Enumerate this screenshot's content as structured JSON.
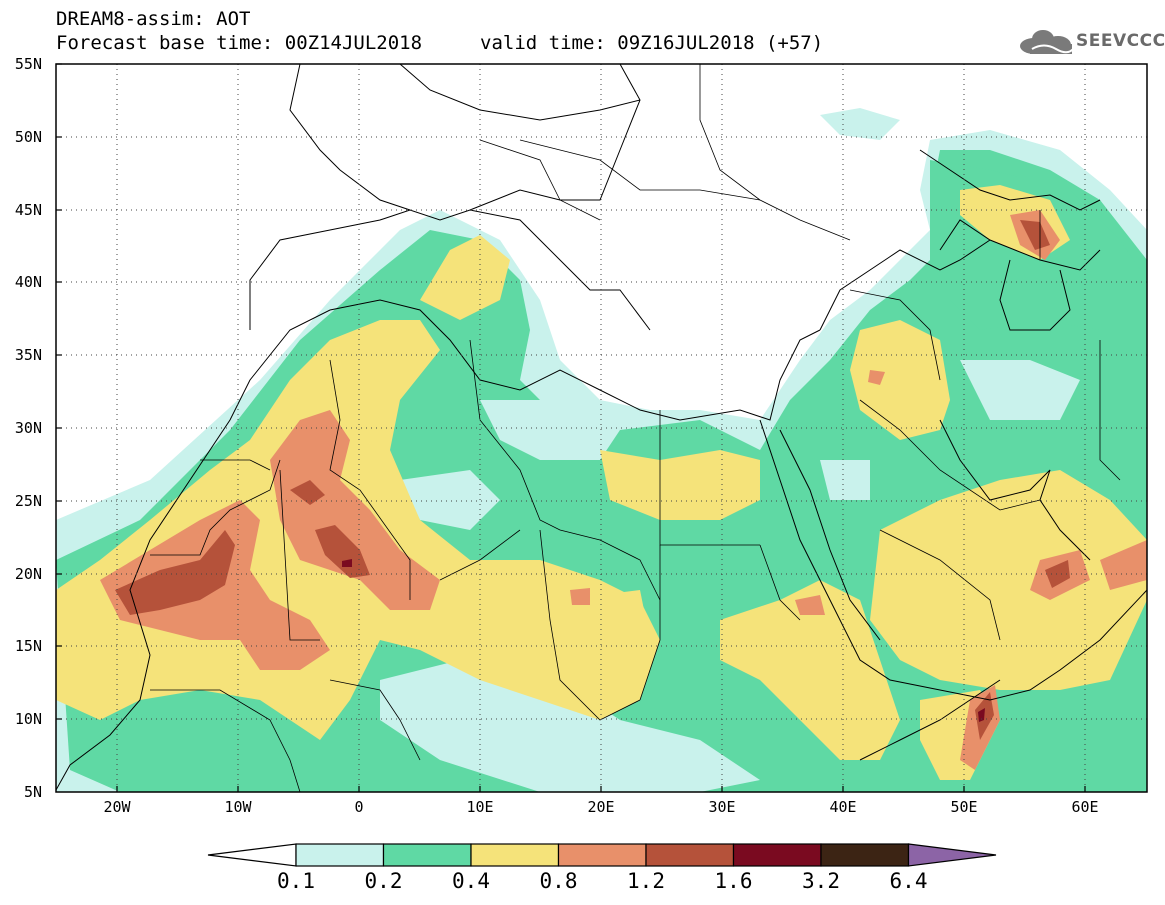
{
  "header": {
    "title": "DREAM8-assim: AOT",
    "base_time": "Forecast base time: 00Z14JUL2018",
    "valid_time": "valid time: 09Z16JUL2018 (+57)",
    "logo": "SEEVCCC"
  },
  "map": {
    "projection": "cylindrical equidistant",
    "lon_range": [
      -25,
      65
    ],
    "lat_range": [
      5,
      55
    ],
    "lat_labels": [
      "55N",
      "50N",
      "45N",
      "40N",
      "35N",
      "30N",
      "25N",
      "20N",
      "15N",
      "10N",
      "5N"
    ],
    "lon_labels": [
      "20W",
      "10W",
      "0",
      "10E",
      "20E",
      "30E",
      "40E",
      "50E",
      "60E"
    ],
    "grid": "dotted",
    "variable": "AOT (aerosol optical thickness)"
  },
  "colorbar": {
    "levels": [
      "0.1",
      "0.2",
      "0.4",
      "0.8",
      "1.2",
      "1.6",
      "3.2",
      "6.4"
    ],
    "colors": [
      "#c9f2ec",
      "#5fd9a4",
      "#f5e37a",
      "#e8906a",
      "#b5523a",
      "#7a0a20",
      "#3c2414",
      "#8c64a6"
    ]
  }
}
